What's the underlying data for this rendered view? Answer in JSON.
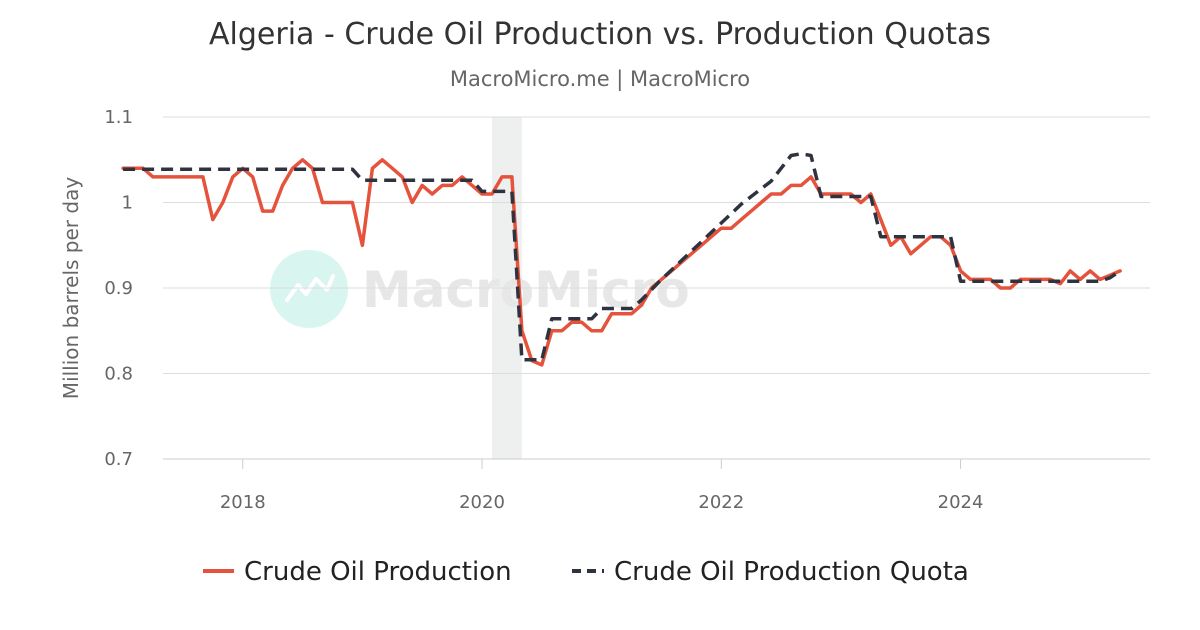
{
  "chart_data": {
    "type": "line",
    "title": "Algeria - Crude Oil Production vs. Production Quotas",
    "subtitle": "MacroMicro.me | MacroMicro",
    "ylabel": "Million barrels per day",
    "xlabel": "",
    "ylim": [
      0.7,
      1.1
    ],
    "yticks": [
      "0.7",
      "0.8",
      "0.9",
      "1",
      "1.1"
    ],
    "xticks": [
      "2018",
      "2020",
      "2022",
      "2024"
    ],
    "grid": true,
    "legend_position": "bottom",
    "watermark": "MacroMicro",
    "shaded_period": [
      "2020-02",
      "2020-05"
    ],
    "colors": {
      "production": "#e5533c",
      "quota": "#2f3340",
      "grid": "#dddddd",
      "shade": "#eef0f0",
      "watermark_icon": "#d9f5ef"
    },
    "series": [
      {
        "name": "Crude Oil Production",
        "style": "solid",
        "color": "#e5533c",
        "points": [
          [
            "2017-01",
            1.04
          ],
          [
            "2017-02",
            1.04
          ],
          [
            "2017-03",
            1.04
          ],
          [
            "2017-04",
            1.03
          ],
          [
            "2017-05",
            1.03
          ],
          [
            "2017-06",
            1.03
          ],
          [
            "2017-07",
            1.03
          ],
          [
            "2017-08",
            1.03
          ],
          [
            "2017-09",
            1.03
          ],
          [
            "2017-10",
            0.98
          ],
          [
            "2017-11",
            1.0
          ],
          [
            "2017-12",
            1.03
          ],
          [
            "2018-01",
            1.04
          ],
          [
            "2018-02",
            1.03
          ],
          [
            "2018-03",
            0.99
          ],
          [
            "2018-04",
            0.99
          ],
          [
            "2018-05",
            1.02
          ],
          [
            "2018-06",
            1.04
          ],
          [
            "2018-07",
            1.05
          ],
          [
            "2018-08",
            1.04
          ],
          [
            "2018-09",
            1.0
          ],
          [
            "2018-10",
            1.0
          ],
          [
            "2018-11",
            1.0
          ],
          [
            "2018-12",
            1.0
          ],
          [
            "2019-01",
            0.95
          ],
          [
            "2019-02",
            1.04
          ],
          [
            "2019-03",
            1.05
          ],
          [
            "2019-04",
            1.04
          ],
          [
            "2019-05",
            1.03
          ],
          [
            "2019-06",
            1.0
          ],
          [
            "2019-07",
            1.02
          ],
          [
            "2019-08",
            1.01
          ],
          [
            "2019-09",
            1.02
          ],
          [
            "2019-10",
            1.02
          ],
          [
            "2019-11",
            1.03
          ],
          [
            "2019-12",
            1.02
          ],
          [
            "2020-01",
            1.01
          ],
          [
            "2020-02",
            1.01
          ],
          [
            "2020-03",
            1.03
          ],
          [
            "2020-04",
            1.03
          ],
          [
            "2020-05",
            0.85
          ],
          [
            "2020-06",
            0.815
          ],
          [
            "2020-07",
            0.81
          ],
          [
            "2020-08",
            0.85
          ],
          [
            "2020-09",
            0.85
          ],
          [
            "2020-10",
            0.86
          ],
          [
            "2020-11",
            0.86
          ],
          [
            "2020-12",
            0.85
          ],
          [
            "2021-01",
            0.85
          ],
          [
            "2021-02",
            0.87
          ],
          [
            "2021-03",
            0.87
          ],
          [
            "2021-04",
            0.87
          ],
          [
            "2021-05",
            0.88
          ],
          [
            "2021-06",
            0.9
          ],
          [
            "2021-07",
            0.91
          ],
          [
            "2021-08",
            0.92
          ],
          [
            "2021-09",
            0.93
          ],
          [
            "2021-10",
            0.94
          ],
          [
            "2021-11",
            0.95
          ],
          [
            "2021-12",
            0.96
          ],
          [
            "2022-01",
            0.97
          ],
          [
            "2022-02",
            0.97
          ],
          [
            "2022-03",
            0.98
          ],
          [
            "2022-04",
            0.99
          ],
          [
            "2022-05",
            1.0
          ],
          [
            "2022-06",
            1.01
          ],
          [
            "2022-07",
            1.01
          ],
          [
            "2022-08",
            1.02
          ],
          [
            "2022-09",
            1.02
          ],
          [
            "2022-10",
            1.03
          ],
          [
            "2022-11",
            1.01
          ],
          [
            "2022-12",
            1.01
          ],
          [
            "2023-01",
            1.01
          ],
          [
            "2023-02",
            1.01
          ],
          [
            "2023-03",
            1.0
          ],
          [
            "2023-04",
            1.01
          ],
          [
            "2023-05",
            0.98
          ],
          [
            "2023-06",
            0.95
          ],
          [
            "2023-07",
            0.96
          ],
          [
            "2023-08",
            0.94
          ],
          [
            "2023-09",
            0.95
          ],
          [
            "2023-10",
            0.96
          ],
          [
            "2023-11",
            0.96
          ],
          [
            "2023-12",
            0.95
          ],
          [
            "2024-01",
            0.92
          ],
          [
            "2024-02",
            0.91
          ],
          [
            "2024-03",
            0.91
          ],
          [
            "2024-04",
            0.91
          ],
          [
            "2024-05",
            0.9
          ],
          [
            "2024-06",
            0.9
          ],
          [
            "2024-07",
            0.91
          ],
          [
            "2024-08",
            0.91
          ],
          [
            "2024-09",
            0.91
          ],
          [
            "2024-10",
            0.91
          ],
          [
            "2024-11",
            0.905
          ],
          [
            "2024-12",
            0.92
          ],
          [
            "2025-01",
            0.91
          ],
          [
            "2025-02",
            0.92
          ],
          [
            "2025-03",
            0.91
          ],
          [
            "2025-04",
            0.915
          ],
          [
            "2025-05",
            0.92
          ]
        ]
      },
      {
        "name": "Crude Oil Production Quota",
        "style": "dashed",
        "color": "#2f3340",
        "points": [
          [
            "2017-01",
            1.039
          ],
          [
            "2018-12",
            1.039
          ],
          [
            "2019-01",
            1.026
          ],
          [
            "2019-12",
            1.026
          ],
          [
            "2020-01",
            1.013
          ],
          [
            "2020-04",
            1.013
          ],
          [
            "2020-05",
            0.816
          ],
          [
            "2020-07",
            0.816
          ],
          [
            "2020-08",
            0.864
          ],
          [
            "2020-12",
            0.864
          ],
          [
            "2021-01",
            0.876
          ],
          [
            "2021-04",
            0.876
          ],
          [
            "2021-05",
            0.886
          ],
          [
            "2021-06",
            0.898
          ],
          [
            "2021-07",
            0.91
          ],
          [
            "2021-08",
            0.921
          ],
          [
            "2021-09",
            0.932
          ],
          [
            "2021-10",
            0.943
          ],
          [
            "2021-11",
            0.954
          ],
          [
            "2021-12",
            0.965
          ],
          [
            "2022-01",
            0.976
          ],
          [
            "2022-02",
            0.987
          ],
          [
            "2022-03",
            0.998
          ],
          [
            "2022-04",
            1.007
          ],
          [
            "2022-05",
            1.016
          ],
          [
            "2022-06",
            1.025
          ],
          [
            "2022-07",
            1.04
          ],
          [
            "2022-08",
            1.055
          ],
          [
            "2022-09",
            1.057
          ],
          [
            "2022-10",
            1.055
          ],
          [
            "2022-11",
            1.007
          ],
          [
            "2023-04",
            1.007
          ],
          [
            "2023-05",
            0.96
          ],
          [
            "2023-12",
            0.96
          ],
          [
            "2024-01",
            0.908
          ],
          [
            "2025-03",
            0.908
          ],
          [
            "2025-04",
            0.912
          ],
          [
            "2025-05",
            0.92
          ]
        ]
      }
    ]
  }
}
